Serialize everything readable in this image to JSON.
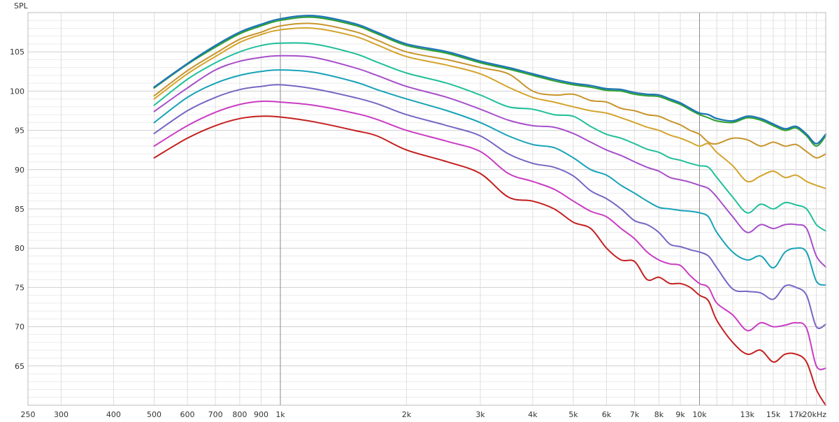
{
  "chart_data": {
    "type": "line",
    "title": "",
    "ylabel": "SPL",
    "xlabel": "",
    "x_scale": "log",
    "xlim": [
      250,
      20000
    ],
    "ylim": [
      60,
      110
    ],
    "grid": true,
    "x_ticks": [
      {
        "value": 250,
        "label": "250"
      },
      {
        "value": 300,
        "label": "300"
      },
      {
        "value": 400,
        "label": "400"
      },
      {
        "value": 500,
        "label": "500"
      },
      {
        "value": 600,
        "label": "600"
      },
      {
        "value": 700,
        "label": "700"
      },
      {
        "value": 800,
        "label": "800"
      },
      {
        "value": 900,
        "label": "900"
      },
      {
        "value": 1000,
        "label": "1k"
      },
      {
        "value": 2000,
        "label": "2k"
      },
      {
        "value": 3000,
        "label": "3k"
      },
      {
        "value": 4000,
        "label": "4k"
      },
      {
        "value": 5000,
        "label": "5k"
      },
      {
        "value": 6000,
        "label": "6k"
      },
      {
        "value": 7000,
        "label": "7k"
      },
      {
        "value": 8000,
        "label": "8k"
      },
      {
        "value": 9000,
        "label": "9k"
      },
      {
        "value": 10000,
        "label": "10k"
      },
      {
        "value": 13000,
        "label": "13k"
      },
      {
        "value": 15000,
        "label": "15k"
      },
      {
        "value": 17000,
        "label": "17k"
      },
      {
        "value": 20000,
        "label": "20kHz"
      }
    ],
    "y_ticks": [
      {
        "value": 65,
        "label": "65"
      },
      {
        "value": 70,
        "label": "70"
      },
      {
        "value": 75,
        "label": "75"
      },
      {
        "value": 80,
        "label": "80"
      },
      {
        "value": 85,
        "label": "85"
      },
      {
        "value": 90,
        "label": "90"
      },
      {
        "value": 95,
        "label": "95"
      },
      {
        "value": 100,
        "label": "100"
      },
      {
        "value": 105,
        "label": "105"
      }
    ],
    "x": [
      500,
      600,
      700,
      800,
      900,
      1000,
      1200,
      1500,
      1700,
      2000,
      2500,
      3000,
      3500,
      4000,
      4500,
      5000,
      5500,
      6000,
      6500,
      7000,
      7500,
      8000,
      8500,
      9000,
      9500,
      10000,
      10500,
      11000,
      12000,
      13000,
      14000,
      15000,
      16000,
      17000,
      18000,
      19000,
      20000
    ],
    "series": [
      {
        "color": "#1f77b4",
        "values": [
          100.5,
          103.5,
          105.8,
          107.5,
          108.5,
          109.2,
          109.6,
          108.6,
          107.5,
          106.0,
          105.0,
          103.8,
          103.0,
          102.2,
          101.5,
          101.0,
          100.7,
          100.3,
          100.2,
          99.8,
          99.6,
          99.5,
          99.0,
          98.5,
          97.8,
          97.2,
          97.0,
          96.5,
          96.2,
          96.8,
          96.5,
          95.8,
          95.2,
          95.5,
          94.5,
          93.3,
          94.5
        ]
      },
      {
        "color": "#2ca02c",
        "values": [
          100.4,
          103.4,
          105.6,
          107.3,
          108.3,
          109.0,
          109.4,
          108.4,
          107.3,
          105.8,
          104.8,
          103.6,
          102.8,
          102.0,
          101.3,
          100.8,
          100.5,
          100.1,
          100.0,
          99.6,
          99.4,
          99.3,
          98.8,
          98.3,
          97.6,
          97.0,
          96.6,
          96.2,
          96.0,
          96.6,
          96.3,
          95.6,
          95.0,
          95.3,
          94.3,
          93.0,
          94.3
        ]
      },
      {
        "color": "#c8952c",
        "values": [
          99.4,
          102.6,
          104.8,
          106.6,
          107.5,
          108.3,
          108.6,
          107.6,
          106.5,
          105.0,
          104.0,
          103.0,
          102.2,
          100.0,
          99.5,
          99.6,
          98.8,
          98.6,
          97.8,
          97.5,
          97.0,
          96.8,
          96.2,
          95.7,
          95.0,
          94.5,
          93.5,
          93.3,
          94.0,
          93.8,
          93.0,
          93.5,
          93.0,
          93.2,
          92.3,
          91.5,
          92.0
        ]
      },
      {
        "color": "#d4a42c",
        "values": [
          99.0,
          102.2,
          104.4,
          106.2,
          107.2,
          107.8,
          108.0,
          107.0,
          105.9,
          104.4,
          103.3,
          102.2,
          100.5,
          99.2,
          98.6,
          98.0,
          97.5,
          97.2,
          96.6,
          96.0,
          95.4,
          95.0,
          94.4,
          94.0,
          93.5,
          93.0,
          93.3,
          92.2,
          90.5,
          88.5,
          89.2,
          89.8,
          89.0,
          89.3,
          88.5,
          88.0,
          87.6
        ]
      },
      {
        "color": "#1fbf9a",
        "values": [
          98.2,
          101.5,
          103.6,
          105.0,
          105.8,
          106.1,
          106.0,
          104.8,
          103.7,
          102.3,
          101.0,
          99.5,
          98.0,
          97.7,
          97.0,
          96.8,
          95.5,
          94.5,
          94.0,
          93.3,
          92.6,
          92.2,
          91.5,
          91.2,
          90.8,
          90.5,
          90.3,
          89.0,
          86.5,
          84.5,
          85.6,
          85.0,
          85.8,
          85.5,
          85.0,
          83.0,
          82.2
        ]
      },
      {
        "color": "#a64fc9",
        "values": [
          97.4,
          100.4,
          102.7,
          103.8,
          104.3,
          104.5,
          104.3,
          103.0,
          102.0,
          100.6,
          99.2,
          97.7,
          96.3,
          95.6,
          95.4,
          94.6,
          93.5,
          92.5,
          91.8,
          91.0,
          90.3,
          89.8,
          89.0,
          88.7,
          88.4,
          88.0,
          87.6,
          86.5,
          84.0,
          82.0,
          83.0,
          82.5,
          83.0,
          83.0,
          82.5,
          79.0,
          77.6
        ]
      },
      {
        "color": "#17a2b8",
        "values": [
          96.0,
          99.2,
          101.0,
          102.0,
          102.5,
          102.7,
          102.4,
          101.2,
          100.2,
          99.0,
          97.5,
          96.0,
          94.3,
          93.2,
          92.8,
          91.5,
          90.0,
          89.3,
          88.0,
          87.0,
          86.0,
          85.2,
          85.0,
          84.8,
          84.7,
          84.5,
          84.0,
          82.0,
          79.5,
          78.5,
          79.0,
          77.5,
          79.5,
          80.0,
          79.5,
          75.8,
          75.3
        ]
      },
      {
        "color": "#7666c4",
        "values": [
          94.6,
          97.5,
          99.2,
          100.2,
          100.6,
          100.8,
          100.3,
          99.2,
          98.4,
          97.0,
          95.6,
          94.3,
          92.0,
          90.8,
          90.3,
          89.2,
          87.3,
          86.3,
          85.0,
          83.5,
          83.0,
          82.0,
          80.5,
          80.2,
          79.8,
          79.5,
          79.0,
          77.5,
          74.8,
          74.5,
          74.3,
          73.5,
          75.2,
          75.0,
          74.0,
          70.0,
          70.3
        ]
      },
      {
        "color": "#c93cc3",
        "values": [
          93.0,
          95.6,
          97.3,
          98.3,
          98.7,
          98.6,
          98.2,
          97.2,
          96.4,
          95.0,
          93.6,
          92.3,
          89.5,
          88.5,
          87.5,
          86.0,
          84.7,
          84.0,
          82.5,
          81.2,
          79.5,
          78.5,
          78.0,
          77.8,
          76.5,
          75.5,
          75.0,
          73.0,
          71.5,
          69.5,
          70.5,
          70.0,
          70.2,
          70.5,
          69.8,
          65.0,
          64.7
        ]
      },
      {
        "color": "#c41f1f",
        "values": [
          91.5,
          94.0,
          95.6,
          96.5,
          96.8,
          96.7,
          96.1,
          95.0,
          94.3,
          92.5,
          91.0,
          89.5,
          86.5,
          86.0,
          85.0,
          83.3,
          82.5,
          80.0,
          78.5,
          78.3,
          76.0,
          76.3,
          75.5,
          75.5,
          75.0,
          74.0,
          73.3,
          70.8,
          68.0,
          66.5,
          67.0,
          65.5,
          66.5,
          66.5,
          65.5,
          62.0,
          60.0
        ]
      }
    ]
  }
}
